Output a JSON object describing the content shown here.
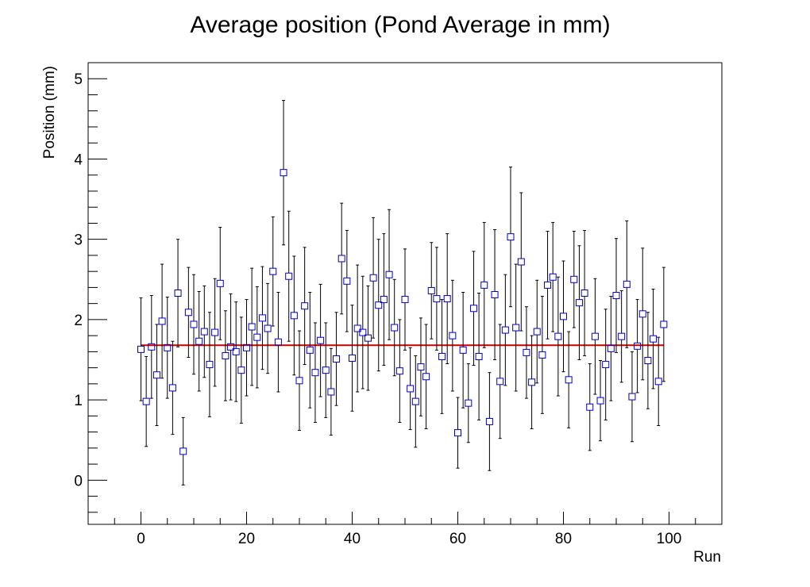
{
  "chart_data": {
    "type": "scatter",
    "title": "Average position (Pond Average in mm)",
    "xlabel": "Run",
    "ylabel": "Position (mm)",
    "xlim": [
      -10,
      110
    ],
    "ylim": [
      -0.55,
      5.2
    ],
    "x_ticks": [
      0,
      20,
      40,
      60,
      80,
      100
    ],
    "y_ticks": [
      0,
      1,
      2,
      3,
      4,
      5
    ],
    "grid": false,
    "series": [
      {
        "marker": "open-square",
        "color": "#0000cc",
        "x": [
          0,
          1,
          2,
          3,
          4,
          5,
          6,
          7,
          8,
          9,
          10,
          11,
          12,
          13,
          14,
          15,
          16,
          17,
          18,
          19,
          20,
          21,
          22,
          23,
          24,
          25,
          26,
          27,
          28,
          29,
          30,
          31,
          32,
          33,
          34,
          35,
          36,
          37,
          38,
          39,
          40,
          41,
          42,
          43,
          44,
          45,
          46,
          47,
          48,
          49,
          50,
          51,
          52,
          53,
          54,
          55,
          56,
          57,
          58,
          59,
          60,
          61,
          62,
          63,
          64,
          65,
          66,
          67,
          68,
          69,
          70,
          71,
          72,
          73,
          74,
          75,
          76,
          77,
          78,
          79,
          80,
          81,
          82,
          83,
          84,
          85,
          86,
          87,
          88,
          89,
          90,
          91,
          92,
          93,
          94,
          95,
          96,
          97,
          98,
          99
        ],
        "y": [
          1.63,
          0.98,
          1.66,
          1.31,
          1.98,
          1.65,
          1.15,
          2.33,
          0.36,
          2.09,
          1.94,
          1.73,
          1.85,
          1.44,
          1.84,
          2.45,
          1.55,
          1.66,
          1.6,
          1.37,
          1.65,
          1.91,
          1.78,
          2.02,
          1.89,
          2.6,
          1.72,
          3.83,
          2.54,
          2.05,
          1.24,
          2.17,
          1.62,
          1.34,
          1.74,
          1.37,
          1.1,
          1.51,
          2.76,
          2.48,
          1.52,
          1.89,
          1.84,
          1.77,
          2.52,
          2.18,
          2.25,
          2.56,
          1.9,
          1.36,
          2.25,
          1.14,
          0.98,
          1.41,
          1.29,
          2.36,
          2.26,
          1.54,
          2.26,
          1.8,
          0.59,
          1.62,
          0.96,
          2.14,
          1.54,
          2.43,
          0.73,
          2.31,
          1.23,
          1.87,
          3.03,
          1.9,
          2.72,
          1.59,
          1.22,
          1.85,
          1.56,
          2.43,
          2.53,
          1.79,
          2.04,
          1.25,
          2.5,
          2.21,
          2.33,
          0.91,
          1.79,
          0.99,
          1.44,
          1.64,
          2.3,
          1.79,
          2.44,
          1.04,
          1.67,
          2.07,
          1.49,
          1.76,
          1.23,
          1.94
        ],
        "y_err": [
          0.64,
          0.56,
          0.64,
          0.63,
          0.71,
          0.63,
          0.58,
          0.67,
          0.42,
          0.56,
          0.62,
          0.62,
          0.57,
          0.65,
          0.67,
          0.7,
          0.56,
          0.66,
          0.62,
          0.66,
          0.6,
          0.73,
          0.63,
          0.64,
          0.56,
          0.68,
          0.62,
          0.9,
          0.81,
          0.74,
          0.62,
          0.73,
          0.72,
          0.62,
          0.7,
          0.59,
          0.54,
          0.58,
          0.69,
          0.63,
          0.66,
          0.79,
          0.7,
          0.65,
          0.75,
          0.82,
          0.82,
          0.81,
          0.6,
          0.64,
          0.63,
          0.51,
          0.57,
          0.61,
          0.65,
          0.6,
          0.64,
          0.71,
          0.81,
          0.69,
          0.44,
          0.72,
          0.49,
          0.71,
          0.79,
          0.78,
          0.61,
          0.81,
          0.71,
          0.69,
          0.87,
          0.79,
          0.86,
          0.57,
          0.58,
          0.64,
          0.73,
          0.67,
          0.68,
          0.74,
          0.69,
          0.6,
          0.6,
          0.71,
          0.78,
          0.54,
          0.72,
          0.5,
          0.69,
          0.65,
          0.71,
          0.57,
          0.79,
          0.56,
          0.58,
          0.82,
          0.6,
          0.62,
          0.55,
          0.71
        ]
      },
      {
        "type": "line",
        "color": "#cc0000",
        "x": [
          0,
          99
        ],
        "y": [
          1.68,
          1.68
        ]
      }
    ]
  }
}
